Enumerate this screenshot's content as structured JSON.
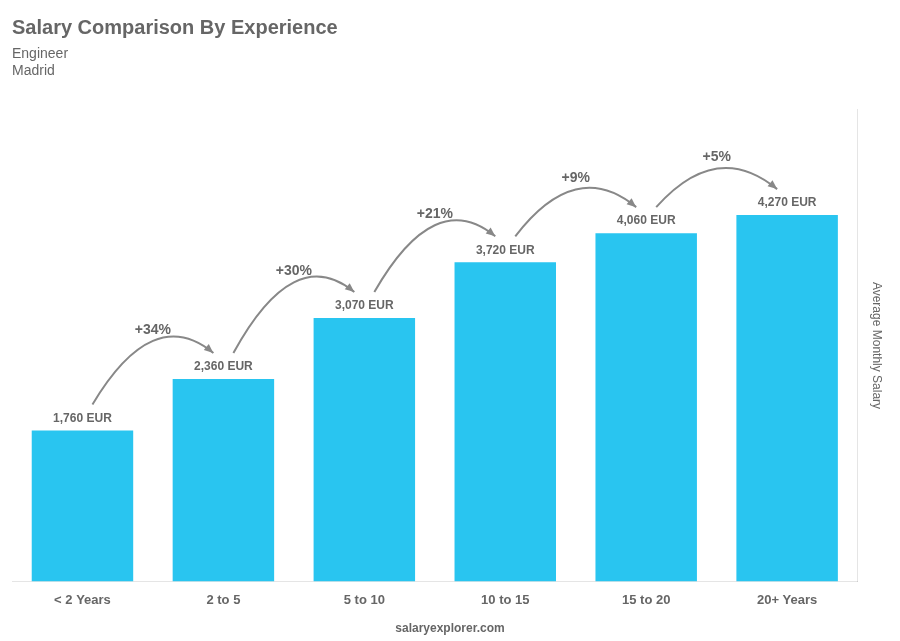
{
  "chart_data": {
    "type": "bar",
    "title": "Salary Comparison By Experience",
    "subtitle": [
      "Engineer",
      "Madrid"
    ],
    "y_label": "Average Monthly Salary",
    "source": "salaryexplorer.com",
    "categories": [
      "< 2 Years",
      "2 to 5",
      "5 to 10",
      "10 to 15",
      "15 to 20",
      "20+ Years"
    ],
    "values": [
      1760,
      2360,
      3070,
      3720,
      4060,
      4270
    ],
    "value_labels": [
      "1,760 EUR",
      "2,360 EUR",
      "3,070 EUR",
      "3,720 EUR",
      "4,060 EUR",
      "4,270 EUR"
    ],
    "data_labels": true,
    "annotations": [
      "+34%",
      "+30%",
      "+21%",
      "+9%",
      "+5%"
    ],
    "color": "#29c5f0",
    "ylim": [
      0,
      5500
    ],
    "tick_labels": "x",
    "grid": false
  }
}
